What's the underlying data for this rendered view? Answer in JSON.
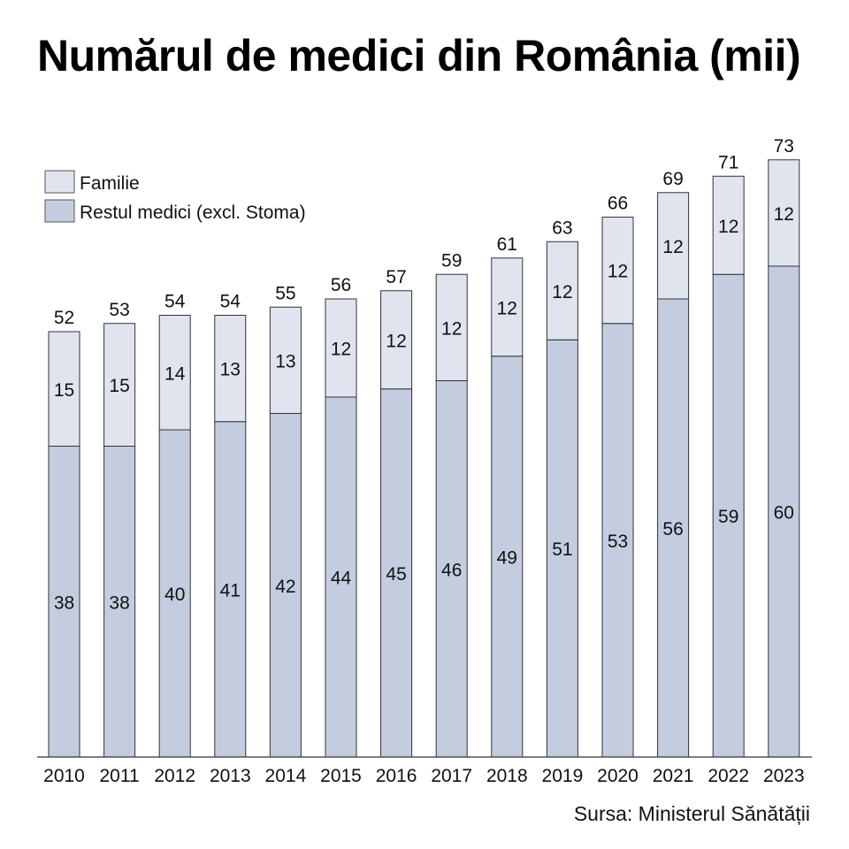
{
  "chart_data": {
    "type": "bar",
    "stacked": true,
    "title": "Numărul de medici din România (mii)",
    "source": "Sursa: Ministerul Sănătății",
    "categories": [
      "2010",
      "2011",
      "2012",
      "2013",
      "2014",
      "2015",
      "2016",
      "2017",
      "2018",
      "2019",
      "2020",
      "2021",
      "2022",
      "2023"
    ],
    "series": [
      {
        "name": "Restul medici (excl. Stoma)",
        "color": "#c4cde0",
        "values": [
          38,
          38,
          40,
          41,
          42,
          44,
          45,
          46,
          49,
          51,
          53,
          56,
          59,
          60
        ]
      },
      {
        "name": "Familie",
        "color": "#dfe4ef",
        "values": [
          15,
          15,
          14,
          13,
          13,
          12,
          12,
          12,
          12,
          12,
          12,
          12,
          12,
          12
        ]
      }
    ],
    "totals": [
      52,
      53,
      54,
      54,
      55,
      56,
      57,
      59,
      61,
      63,
      66,
      69,
      71,
      73
    ],
    "legend_position": "top-left",
    "xlabel": "",
    "ylabel": "",
    "ylim": [
      0,
      73
    ],
    "grid": false
  }
}
